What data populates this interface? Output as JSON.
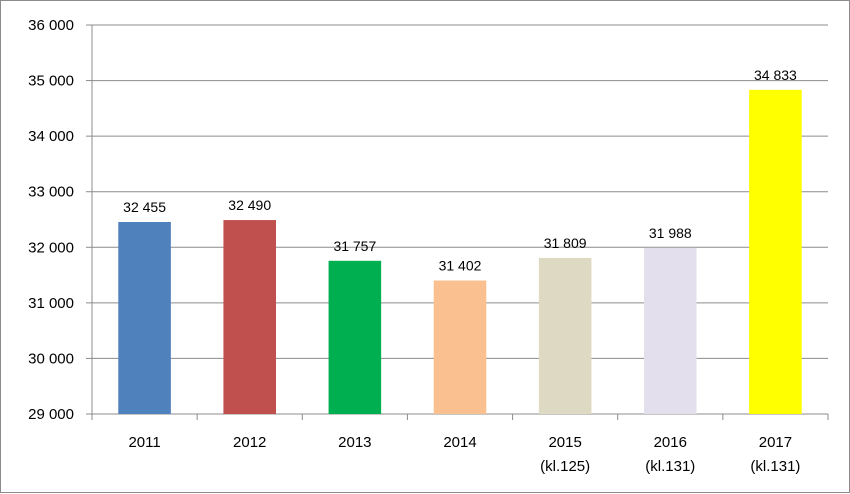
{
  "chart_data": {
    "type": "bar",
    "categories": [
      [
        "2011"
      ],
      [
        "2012"
      ],
      [
        "2013"
      ],
      [
        "2014"
      ],
      [
        "2015",
        "(kl.125)"
      ],
      [
        "2016",
        "(kl.131)"
      ],
      [
        "2017",
        "(kl.131)"
      ]
    ],
    "values": [
      32455,
      32490,
      31757,
      31402,
      31809,
      31988,
      34833
    ],
    "data_labels": [
      "32 455",
      "32 490",
      "31 757",
      "31 402",
      "31 809",
      "31 988",
      "34 833"
    ],
    "colors": [
      "#4f81bd",
      "#c0504d",
      "#00b050",
      "#fac090",
      "#ddd9c3",
      "#e4dfec",
      "#ffff00"
    ],
    "ylim": [
      29000,
      36000
    ],
    "yticks": [
      29000,
      30000,
      31000,
      32000,
      33000,
      34000,
      35000,
      36000
    ],
    "ytick_labels": [
      "29 000",
      "30 000",
      "31 000",
      "32 000",
      "33 000",
      "34 000",
      "35 000",
      "36 000"
    ],
    "grid": true,
    "legend": "none"
  }
}
